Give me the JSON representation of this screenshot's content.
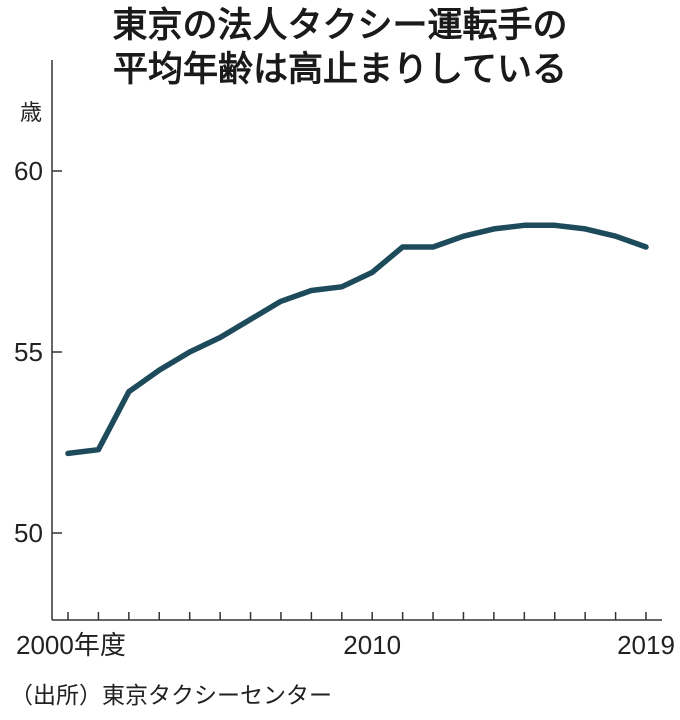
{
  "chart_data": {
    "type": "line",
    "title_lines": [
      "東京の法人タクシー運転手の",
      "平均年齢は高止まりしている"
    ],
    "ylabel": "歳",
    "ylim": [
      48,
      63
    ],
    "yticks": [
      50,
      55,
      60
    ],
    "xlim": [
      2000,
      2019
    ],
    "x_tick_labels": [
      {
        "x": 2000,
        "label": "2000年度"
      },
      {
        "x": 2010,
        "label": "2010"
      },
      {
        "x": 2019,
        "label": "2019"
      }
    ],
    "x": [
      2000,
      2001,
      2002,
      2003,
      2004,
      2005,
      2006,
      2007,
      2008,
      2009,
      2010,
      2011,
      2012,
      2013,
      2014,
      2015,
      2016,
      2017,
      2018,
      2019
    ],
    "series": [
      {
        "values": [
          52.2,
          52.3,
          53.9,
          54.5,
          55.0,
          55.4,
          55.9,
          56.4,
          56.7,
          56.8,
          57.2,
          57.9,
          57.9,
          58.2,
          58.4,
          58.5,
          58.5,
          58.4,
          58.2,
          57.9
        ],
        "color": "#1d4b5b"
      }
    ],
    "grid": false,
    "source": "（出所）東京タクシーセンター"
  }
}
